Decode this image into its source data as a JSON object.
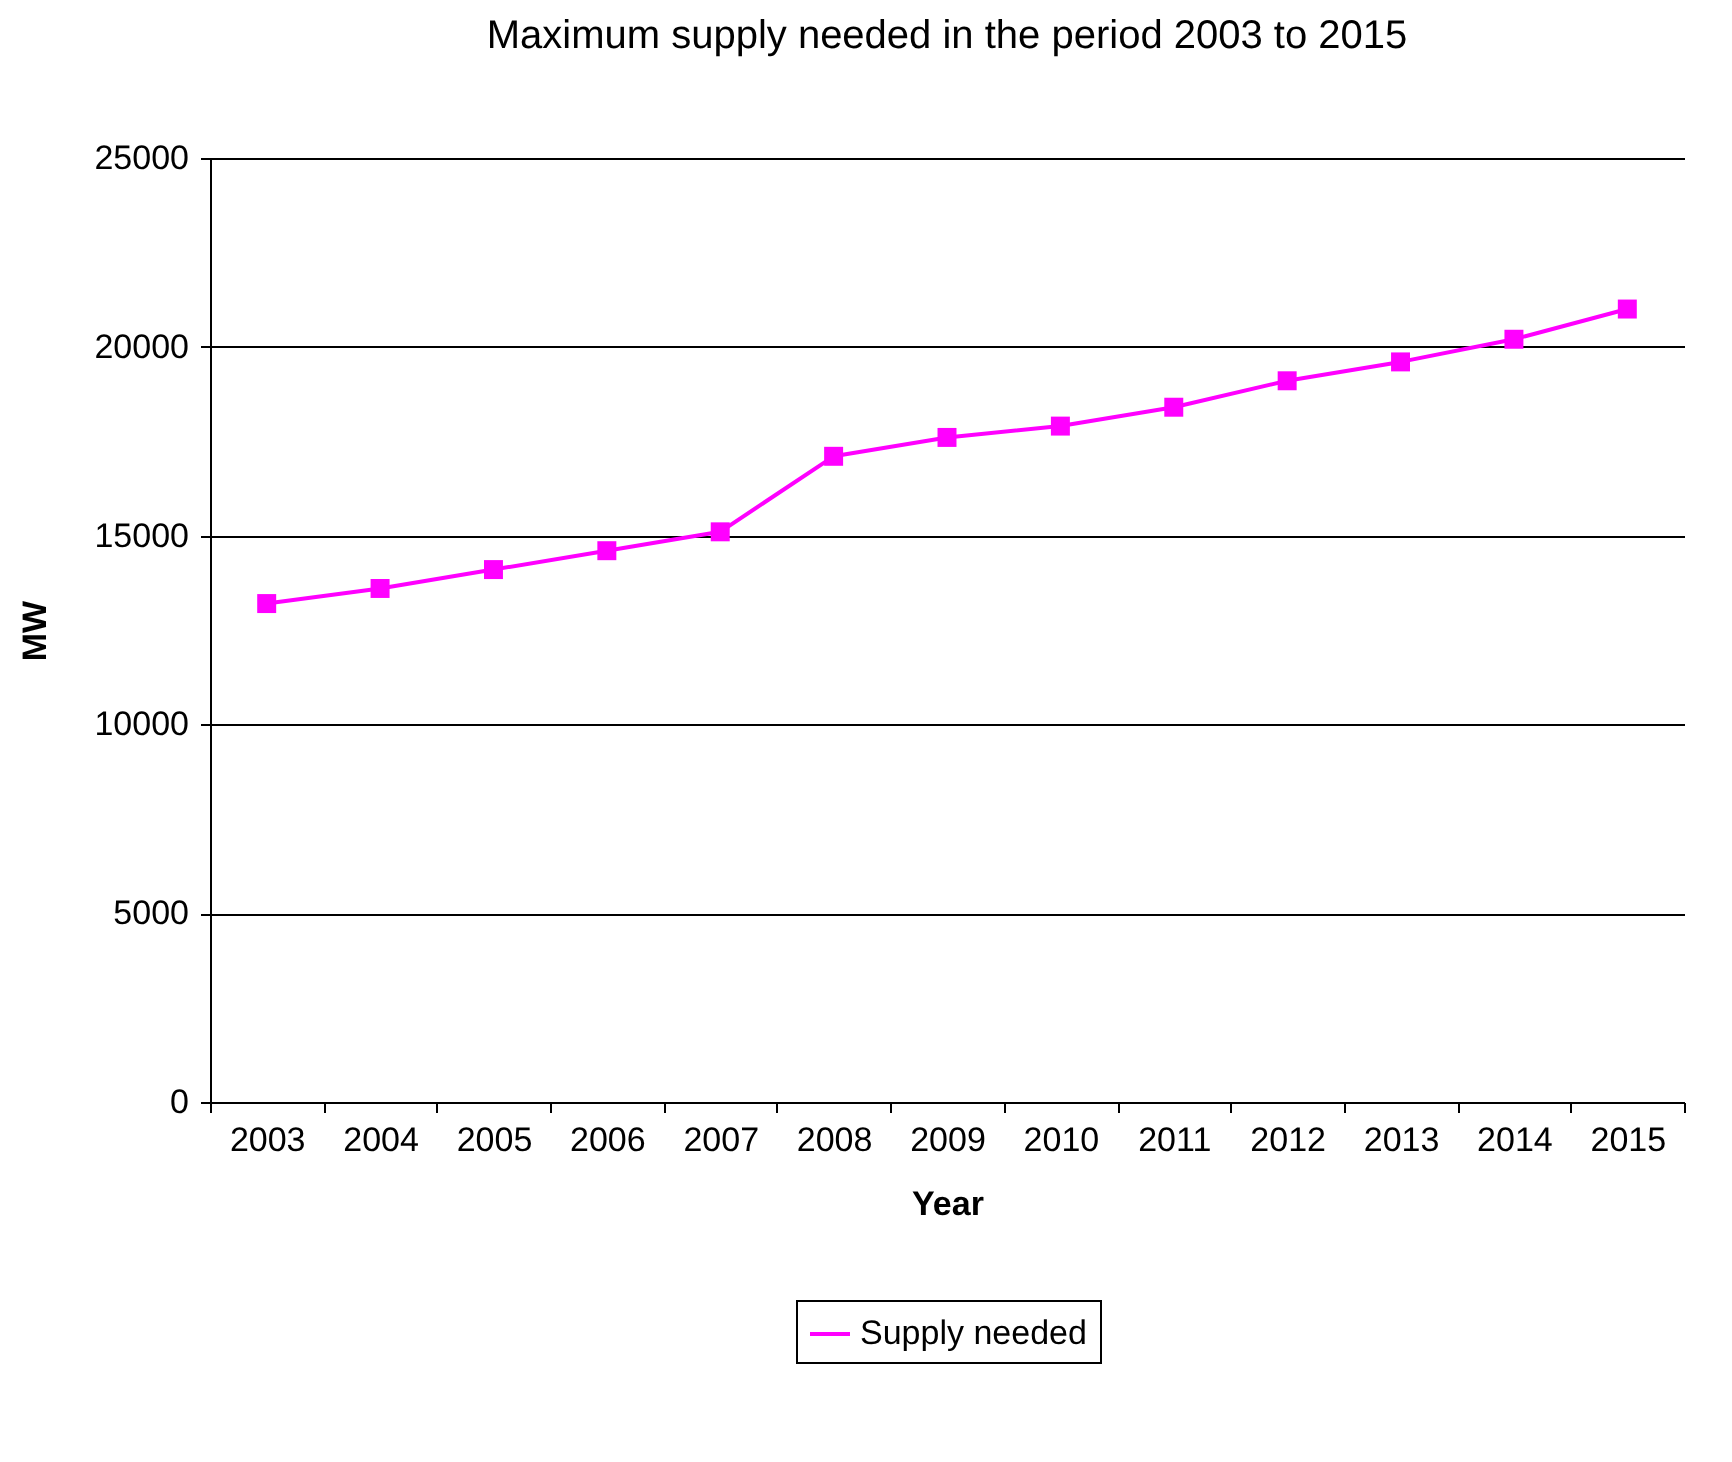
{
  "chart_data": {
    "type": "line",
    "title": "Maximum supply needed in the period 2003 to 2015",
    "xlabel": "Year",
    "ylabel": "MW",
    "categories": [
      "2003",
      "2004",
      "2005",
      "2006",
      "2007",
      "2008",
      "2009",
      "2010",
      "2011",
      "2012",
      "2013",
      "2014",
      "2015"
    ],
    "series": [
      {
        "name": "Supply needed",
        "color": "#ff00ff",
        "values": [
          13200,
          13600,
          14100,
          14600,
          15100,
          17100,
          17600,
          17900,
          18400,
          19100,
          19600,
          20200,
          21000
        ]
      }
    ],
    "ylim": [
      0,
      25000
    ],
    "yticks": [
      0,
      5000,
      10000,
      15000,
      20000,
      25000
    ],
    "grid": "y",
    "legend": "bottom",
    "marker": "square",
    "line_style": "solid"
  }
}
